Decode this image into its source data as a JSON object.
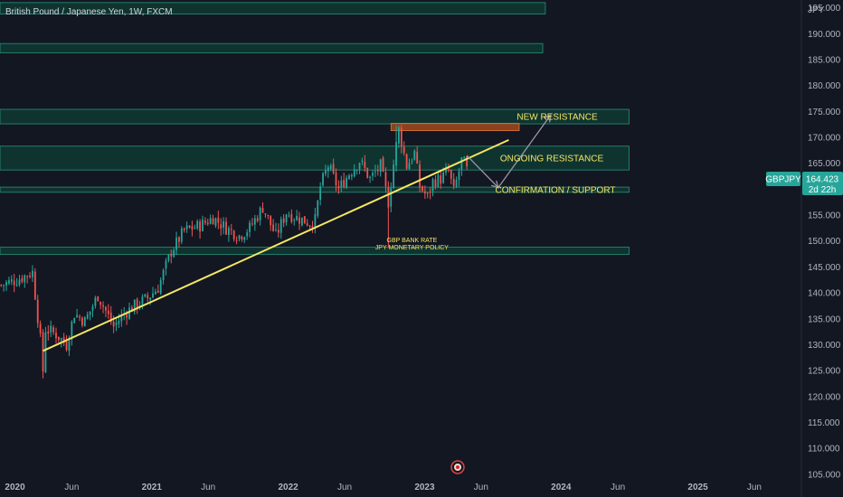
{
  "title": "British Pound / Japanese Yen, 1W, FXCM",
  "currency_label": "JPY",
  "symbol": "GBPJPY",
  "last_price": "164.423",
  "countdown": "2d 22h",
  "colors": {
    "background": "#131722",
    "up": "#26a69a",
    "down": "#ef5350",
    "zone_fill": "#0f3a33",
    "zone_stroke": "#2a8f7b",
    "resistance_box": "#b5501f",
    "trendline": "#f5e663",
    "arrow": "#9b93a8",
    "annotation": "#f5e663",
    "badge": "#26a69a"
  },
  "chart_data": {
    "type": "candlestick",
    "timeframe": "1W",
    "ylim": [
      104,
      199
    ],
    "y_ticks": [
      "195.000",
      "190.000",
      "185.000",
      "180.000",
      "175.000",
      "170.000",
      "165.000",
      "160.000",
      "155.000",
      "150.000",
      "145.000",
      "140.000",
      "135.000",
      "130.000",
      "125.000",
      "120.000",
      "115.000",
      "110.000",
      "105.000"
    ],
    "y_tick_values": [
      195,
      190,
      185,
      180,
      175,
      170,
      165,
      160,
      155,
      150,
      145,
      140,
      135,
      130,
      125,
      120,
      115,
      110,
      105
    ],
    "x_ticks": [
      "2020",
      "Jun",
      "2021",
      "Jun",
      "2022",
      "Jun",
      "2023",
      "Jun",
      "2024",
      "Jun",
      "2025",
      "Jun"
    ],
    "x_tick_dates": [
      "2020-01-01",
      "2020-06-01",
      "2021-01-01",
      "2021-06-01",
      "2022-01-01",
      "2022-06-01",
      "2023-01-01",
      "2023-06-01",
      "2024-01-01",
      "2024-06-01",
      "2025-01-01",
      "2025-06-01"
    ],
    "x_range": [
      "2019-11-22",
      "2025-10-05"
    ],
    "price_path": [
      [
        "2019-11-25",
        141.5
      ],
      [
        "2020-01-06",
        142.5
      ],
      [
        "2020-02-17",
        144
      ],
      [
        "2020-03-09",
        131
      ],
      [
        "2020-03-16",
        125
      ],
      [
        "2020-03-23",
        133
      ],
      [
        "2020-04-20",
        132
      ],
      [
        "2020-05-18",
        130
      ],
      [
        "2020-06-08",
        136
      ],
      [
        "2020-07-06",
        134.5
      ],
      [
        "2020-08-10",
        139.5
      ],
      [
        "2020-09-21",
        133.5
      ],
      [
        "2020-10-19",
        136
      ],
      [
        "2020-11-16",
        137.5
      ],
      [
        "2020-12-21",
        139
      ],
      [
        "2021-01-18",
        141
      ],
      [
        "2021-02-22",
        148
      ],
      [
        "2021-03-29",
        152
      ],
      [
        "2021-05-10",
        153
      ],
      [
        "2021-06-14",
        154.5
      ],
      [
        "2021-07-19",
        152.5
      ],
      [
        "2021-08-23",
        151
      ],
      [
        "2021-09-20",
        152.5
      ],
      [
        "2021-10-25",
        156.5
      ],
      [
        "2021-11-29",
        151
      ],
      [
        "2021-12-27",
        155.5
      ],
      [
        "2022-01-24",
        154.5
      ],
      [
        "2022-02-28",
        153.5
      ],
      [
        "2022-03-14",
        154
      ],
      [
        "2022-03-28",
        160.5
      ],
      [
        "2022-04-18",
        164.5
      ],
      [
        "2022-05-16",
        160
      ],
      [
        "2022-06-13",
        163
      ],
      [
        "2022-07-11",
        165.5
      ],
      [
        "2022-08-08",
        162
      ],
      [
        "2022-09-05",
        164.5
      ],
      [
        "2022-09-26",
        157.5
      ],
      [
        "2022-10-17",
        168.5
      ],
      [
        "2022-10-24",
        171.5
      ],
      [
        "2022-11-14",
        164.5
      ],
      [
        "2022-12-05",
        167
      ],
      [
        "2022-12-19",
        160.5
      ],
      [
        "2023-01-09",
        158.5
      ],
      [
        "2023-01-23",
        161.5
      ],
      [
        "2023-02-13",
        162
      ],
      [
        "2023-03-06",
        163.5
      ],
      [
        "2023-03-20",
        159.5
      ],
      [
        "2023-04-10",
        165.5
      ],
      [
        "2023-04-24",
        164.4
      ]
    ],
    "low_spikes": [
      [
        "2020-03-16",
        123.5
      ],
      [
        "2022-09-26",
        148.7
      ]
    ],
    "high_spikes": [
      [
        "2022-10-17",
        172.2
      ]
    ],
    "zones": [
      {
        "label": "",
        "y_top": 196,
        "y_bottom": 193.8,
        "x_end": "2023-11-20"
      },
      {
        "label": "",
        "y_top": 188.1,
        "y_bottom": 186.3,
        "x_end": "2023-11-13"
      },
      {
        "label": "NEW RESISTANCE",
        "y_top": 175.4,
        "y_bottom": 172.6,
        "x_end": "2024-07-01"
      },
      {
        "label": "ONGOING RESISTANCE",
        "y_top": 168.3,
        "y_bottom": 163.7,
        "x_end": "2024-07-01"
      },
      {
        "label": "CONFIRMATION / SUPPORT",
        "y_top": 160.4,
        "y_bottom": 159.4,
        "x_end": "2024-07-01"
      },
      {
        "label": "",
        "y_top": 148.8,
        "y_bottom": 147.4,
        "x_end": "2024-07-01"
      }
    ],
    "resistance_box": {
      "x_start": "2022-10-03",
      "x_end": "2023-09-11",
      "y_top": 172.7,
      "y_bottom": 171.3
    },
    "trendline": {
      "start": [
        "2020-03-16",
        128.8
      ],
      "end": [
        "2023-08-14",
        169.5
      ]
    },
    "projection_path": [
      [
        "2023-04-24",
        166.5
      ],
      [
        "2023-07-17",
        160.3
      ],
      [
        "2023-12-04",
        174.3
      ]
    ],
    "annotations": [
      "GBP BANK RATE",
      "JPY MONETARY POLICY"
    ]
  }
}
